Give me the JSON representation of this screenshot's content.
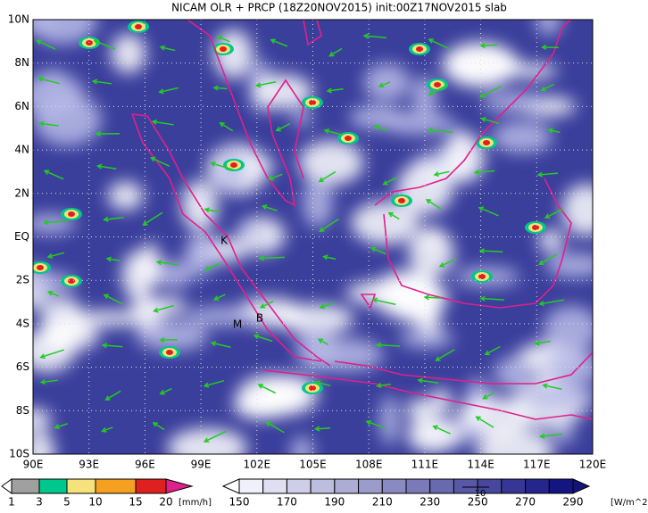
{
  "title": "NICAM OLR + PRCP (18Z20NOV2015) init:00Z17NOV2015 slab",
  "lon_labels": [
    "90E",
    "93E",
    "96E",
    "99E",
    "102E",
    "105E",
    "108E",
    "111E",
    "114E",
    "117E",
    "120E"
  ],
  "lat_labels": [
    "10N",
    "8N",
    "6N",
    "4N",
    "2N",
    "EQ",
    "2S",
    "4S",
    "6S",
    "8S",
    "10S"
  ],
  "markers": [
    "K",
    "M",
    "B"
  ],
  "precip_colorbar": {
    "labels": [
      "1",
      "3",
      "5",
      "10",
      "15",
      "20"
    ],
    "unit": "[mm/h]"
  },
  "olr_colorbar": {
    "labels": [
      "150",
      "170",
      "190",
      "210",
      "230",
      "250",
      "270",
      "290"
    ],
    "unit": "[W/m^2]"
  },
  "vector_scale_label": "10"
}
